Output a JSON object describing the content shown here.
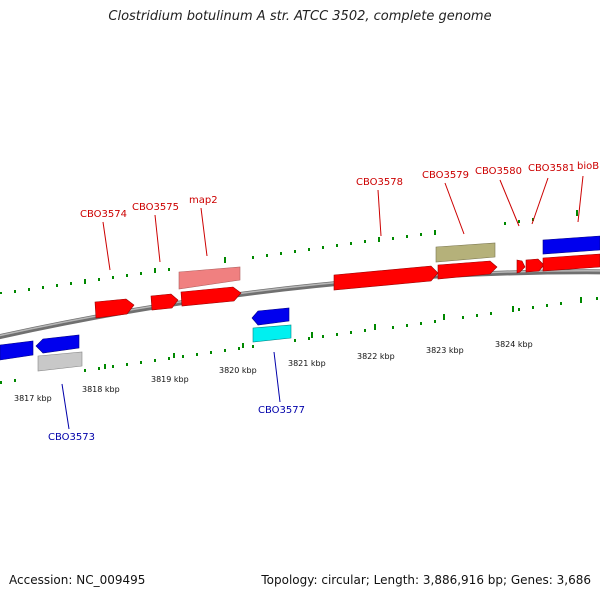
{
  "title": "Clostridium botulinum A str. ATCC 3502, complete genome",
  "footer": {
    "accession": "Accession: NC_009495",
    "stats": "Topology: circular; Length: 3,886,916 bp; Genes: 3,686"
  },
  "colors": {
    "red": "#ff0000",
    "pink": "#f08080",
    "olive": "#b5b17a",
    "blue": "#0000ee",
    "cyan": "#00f0f0",
    "gray": "#c8c8c8",
    "backbone": "#808080",
    "tick": "#008800",
    "label_red": "#cc0000",
    "label_blue": "#0000aa"
  },
  "ticks": [
    "3817 kbp",
    "3818 kbp",
    "3819 kbp",
    "3820 kbp",
    "3821 kbp",
    "3822 kbp",
    "3823 kbp",
    "3824 kbp"
  ],
  "gene_labels": [
    {
      "id": "CBO3573",
      "color": "label_blue"
    },
    {
      "id": "CBO3574",
      "color": "label_red"
    },
    {
      "id": "CBO3575",
      "color": "label_red"
    },
    {
      "id": "map2",
      "color": "label_red"
    },
    {
      "id": "CBO3577",
      "color": "label_blue"
    },
    {
      "id": "CBO3578",
      "color": "label_red"
    },
    {
      "id": "CBO3579",
      "color": "label_red"
    },
    {
      "id": "CBO3580",
      "color": "label_red"
    },
    {
      "id": "CBO3581",
      "color": "label_red"
    },
    {
      "id": "bioB",
      "color": "label_red"
    }
  ]
}
